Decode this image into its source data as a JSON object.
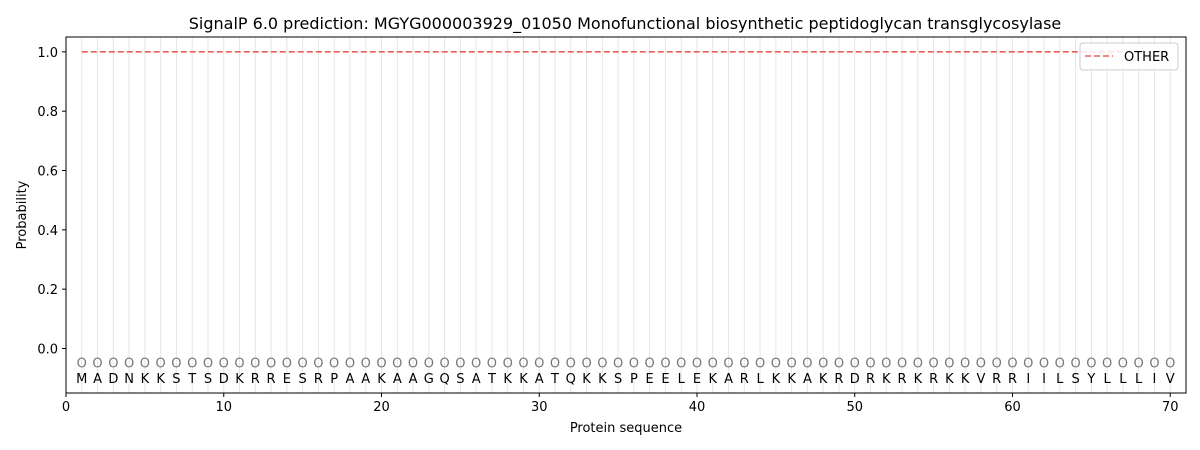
{
  "chart_data": {
    "type": "line",
    "title": "SignalP 6.0 prediction: MGYG000003929_01050 Monofunctional biosynthetic peptidoglycan transglycosylase",
    "xlabel": "Protein sequence",
    "ylabel": "Probability",
    "xlim": [
      0,
      71
    ],
    "ylim": [
      -0.15,
      1.05
    ],
    "x_ticks": [
      0,
      10,
      20,
      30,
      40,
      50,
      60,
      70
    ],
    "y_ticks": [
      0.0,
      0.2,
      0.4,
      0.6,
      0.8,
      1.0
    ],
    "x_tick_labels": [
      "0",
      "10",
      "20",
      "30",
      "40",
      "50",
      "60",
      "70"
    ],
    "y_tick_labels": [
      "0.0",
      "0.2",
      "0.4",
      "0.6",
      "0.8",
      "1.0"
    ],
    "sequence": [
      "M",
      "A",
      "D",
      "N",
      "K",
      "K",
      "S",
      "T",
      "S",
      "D",
      "K",
      "R",
      "R",
      "E",
      "S",
      "R",
      "P",
      "A",
      "A",
      "K",
      "A",
      "A",
      "G",
      "Q",
      "S",
      "A",
      "T",
      "K",
      "K",
      "A",
      "T",
      "Q",
      "K",
      "K",
      "S",
      "P",
      "E",
      "E",
      "L",
      "E",
      "K",
      "A",
      "R",
      "L",
      "K",
      "K",
      "A",
      "K",
      "R",
      "D",
      "R",
      "K",
      "R",
      "K",
      "R",
      "K",
      "K",
      "V",
      "R",
      "R",
      "I",
      "I",
      "L",
      "S",
      "Y",
      "L",
      "L",
      "L",
      "I",
      "V"
    ],
    "state_labels": [
      "O",
      "O",
      "O",
      "O",
      "O",
      "O",
      "O",
      "O",
      "O",
      "O",
      "O",
      "O",
      "O",
      "O",
      "O",
      "O",
      "O",
      "O",
      "O",
      "O",
      "O",
      "O",
      "O",
      "O",
      "O",
      "O",
      "O",
      "O",
      "O",
      "O",
      "O",
      "O",
      "O",
      "O",
      "O",
      "O",
      "O",
      "O",
      "O",
      "O",
      "O",
      "O",
      "O",
      "O",
      "O",
      "O",
      "O",
      "O",
      "O",
      "O",
      "O",
      "O",
      "O",
      "O",
      "O",
      "O",
      "O",
      "O",
      "O",
      "O",
      "O",
      "O",
      "O",
      "O",
      "O",
      "O",
      "O",
      "O",
      "O",
      "O"
    ],
    "series": [
      {
        "name": "OTHER",
        "color": "#e8605f",
        "style": "dashed",
        "x_range": [
          1,
          70
        ],
        "value": 1.0
      }
    ],
    "grid": "vertical lines at each residue",
    "legend_position": "top-right"
  }
}
